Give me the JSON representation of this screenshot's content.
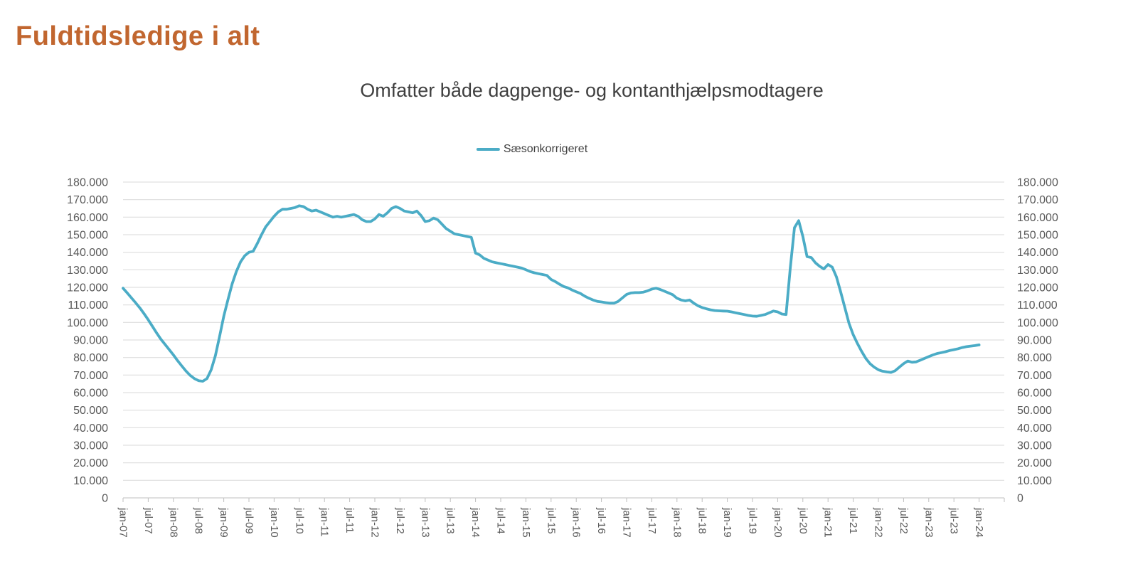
{
  "title": "Fuldtidsledige i alt",
  "colors": {
    "title": "#C1662F",
    "subtitle": "#3F3F3F",
    "line": "#4BACC6",
    "gridline": "#D9D9D9",
    "axis_line": "#BFBFBF",
    "tick_label": "#595959",
    "legend_text": "#404040",
    "background": "#FFFFFF"
  },
  "chart_data": {
    "type": "line",
    "title": "Omfatter både dagpenge- og kontanthjælpsmodtagere",
    "xlabel": "",
    "ylabel": "",
    "ylim": [
      0,
      180000
    ],
    "y_tick_interval": 10000,
    "grid": "horizontal",
    "legend_position": "top",
    "dual_y_axis": true,
    "y_tick_labels_bottom_up": [
      "0",
      "10.000",
      "20.000",
      "30.000",
      "40.000",
      "50.000",
      "60.000",
      "70.000",
      "80.000",
      "90.000",
      "100.000",
      "110.000",
      "120.000",
      "130.000",
      "140.000",
      "150.000",
      "160.000",
      "170.000",
      "180.000"
    ],
    "x_tick_labels": [
      "jan-07",
      "jul-07",
      "jan-08",
      "jul-08",
      "jan-09",
      "jul-09",
      "jan-10",
      "jul-10",
      "jan-11",
      "jul-11",
      "jan-12",
      "jul-12",
      "jan-13",
      "jul-13",
      "jan-14",
      "jul-14",
      "jan-15",
      "jul-15",
      "jan-16",
      "jul-16",
      "jan-17",
      "jul-17",
      "jan-18",
      "jul-18",
      "jan-19",
      "jul-19",
      "jan-20",
      "jul-20",
      "jan-21",
      "jul-21",
      "jan-22",
      "jul-22",
      "jan-23",
      "jul-23",
      "jan-24"
    ],
    "series": [
      {
        "name": "Sæsonkorrigeret",
        "color": "#4BACC6",
        "start": "jan-07",
        "end": "jan-24",
        "frequency": "monthly",
        "values": [
          119500,
          116800,
          114000,
          111200,
          108300,
          105000,
          101500,
          97800,
          94000,
          90500,
          87500,
          84500,
          81500,
          78200,
          75200,
          72300,
          69800,
          68000,
          66800,
          66500,
          68000,
          73000,
          81000,
          92000,
          103500,
          113000,
          122000,
          129000,
          134500,
          138000,
          140000,
          140500,
          145000,
          150000,
          154500,
          157500,
          160500,
          163000,
          164500,
          164500,
          165000,
          165500,
          166500,
          166000,
          164500,
          163500,
          164000,
          163000,
          162000,
          161000,
          160000,
          160500,
          160000,
          160500,
          161000,
          161500,
          160500,
          158500,
          157500,
          157500,
          159000,
          161500,
          160500,
          162500,
          165000,
          166000,
          165000,
          163500,
          163000,
          162500,
          163500,
          161000,
          157500,
          158000,
          159500,
          158500,
          156000,
          153500,
          152000,
          150500,
          150000,
          149500,
          149000,
          148500,
          139500,
          138500,
          136500,
          135500,
          134500,
          134000,
          133500,
          133000,
          132500,
          132000,
          131500,
          131000,
          130000,
          129000,
          128300,
          127800,
          127300,
          126800,
          124500,
          123300,
          121800,
          120500,
          119700,
          118500,
          117500,
          116500,
          115000,
          113800,
          112800,
          112000,
          111700,
          111300,
          111000,
          111000,
          112000,
          114000,
          116000,
          116800,
          117000,
          117000,
          117300,
          118000,
          119000,
          119500,
          118800,
          117800,
          116800,
          115800,
          113800,
          112800,
          112300,
          112800,
          111000,
          109500,
          108500,
          107800,
          107200,
          106800,
          106600,
          106500,
          106400,
          106000,
          105500,
          105000,
          104500,
          104000,
          103600,
          103500,
          104000,
          104500,
          105500,
          106500,
          106000,
          104800,
          104500,
          131000,
          154000,
          158000,
          149000,
          137500,
          137000,
          134000,
          132000,
          130500,
          133000,
          131500,
          126000,
          117500,
          108500,
          99500,
          93000,
          88000,
          83500,
          79500,
          76500,
          74500,
          73000,
          72200,
          71800,
          71500,
          72500,
          74500,
          76500,
          78000,
          77300,
          77500,
          78500,
          79500,
          80500,
          81500,
          82300,
          82800,
          83300,
          84000,
          84500,
          85000,
          85700,
          86200,
          86500,
          86800,
          87200
        ]
      }
    ]
  }
}
